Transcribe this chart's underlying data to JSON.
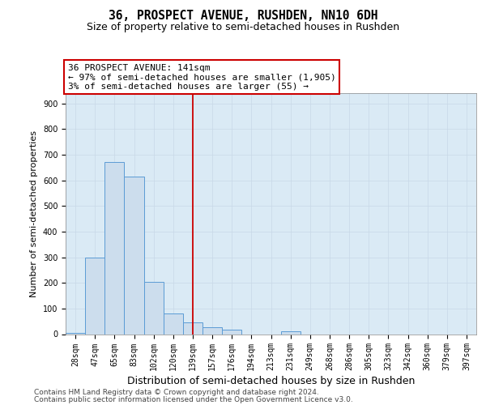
{
  "title_line1": "36, PROSPECT AVENUE, RUSHDEN, NN10 6DH",
  "title_line2": "Size of property relative to semi-detached houses in Rushden",
  "xlabel": "Distribution of semi-detached houses by size in Rushden",
  "ylabel": "Number of semi-detached properties",
  "categories": [
    "28sqm",
    "47sqm",
    "65sqm",
    "83sqm",
    "102sqm",
    "120sqm",
    "139sqm",
    "157sqm",
    "176sqm",
    "194sqm",
    "213sqm",
    "231sqm",
    "249sqm",
    "268sqm",
    "286sqm",
    "305sqm",
    "323sqm",
    "342sqm",
    "360sqm",
    "379sqm",
    "397sqm"
  ],
  "values": [
    5,
    300,
    670,
    615,
    205,
    80,
    45,
    28,
    18,
    0,
    0,
    12,
    0,
    0,
    0,
    0,
    0,
    0,
    0,
    0,
    0
  ],
  "bar_color": "#ccdded",
  "bar_edge_color": "#5b9bd5",
  "vline_x_index": 6,
  "vline_color": "#cc0000",
  "annotation_line1": "36 PROSPECT AVENUE: 141sqm",
  "annotation_line2": "← 97% of semi-detached houses are smaller (1,905)",
  "annotation_line3": "3% of semi-detached houses are larger (55) →",
  "ylim_max": 940,
  "yticks": [
    0,
    100,
    200,
    300,
    400,
    500,
    600,
    700,
    800,
    900
  ],
  "grid_color": "#c8d8e8",
  "bg_color": "#daeaf5",
  "footnote_line1": "Contains HM Land Registry data © Crown copyright and database right 2024.",
  "footnote_line2": "Contains public sector information licensed under the Open Government Licence v3.0.",
  "title_fontsize": 10.5,
  "subtitle_fontsize": 9,
  "ylabel_fontsize": 8,
  "xlabel_fontsize": 9,
  "tick_fontsize": 7,
  "annot_fontsize": 8,
  "footnote_fontsize": 6.5
}
